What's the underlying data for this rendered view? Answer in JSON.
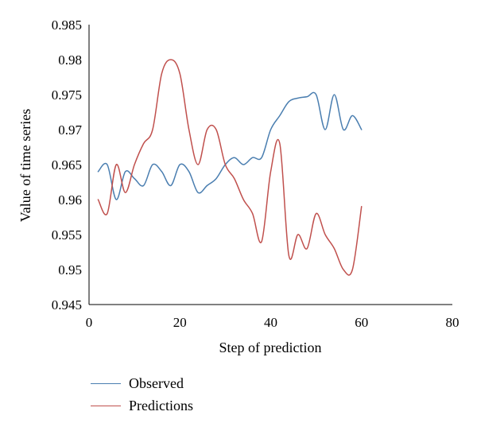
{
  "chart_data": {
    "type": "line",
    "title": "",
    "xlabel": "Step of prediction",
    "ylabel": "Value of time series",
    "xlim": [
      0,
      80
    ],
    "ylim": [
      0.945,
      0.985
    ],
    "x_ticks": [
      "0",
      "20",
      "40",
      "60",
      "80"
    ],
    "y_ticks": [
      "0.945",
      "0.95",
      "0.955",
      "0.96",
      "0.965",
      "0.97",
      "0.975",
      "0.98",
      "0.985"
    ],
    "grid": false,
    "legend_position": "bottom-left",
    "series": [
      {
        "name": "Observed",
        "color": "#4a7eb0",
        "points": [
          [
            2,
            0.964
          ],
          [
            4,
            0.965
          ],
          [
            6,
            0.96
          ],
          [
            8,
            0.964
          ],
          [
            10,
            0.963
          ],
          [
            12,
            0.962
          ],
          [
            14,
            0.965
          ],
          [
            16,
            0.964
          ],
          [
            18,
            0.962
          ],
          [
            20,
            0.965
          ],
          [
            22,
            0.964
          ],
          [
            24,
            0.961
          ],
          [
            26,
            0.962
          ],
          [
            28,
            0.963
          ],
          [
            30,
            0.965
          ],
          [
            32,
            0.966
          ],
          [
            34,
            0.965
          ],
          [
            36,
            0.966
          ],
          [
            38,
            0.966
          ],
          [
            40,
            0.97
          ],
          [
            42,
            0.972
          ],
          [
            44,
            0.974
          ],
          [
            46,
            0.9745
          ],
          [
            48,
            0.9747
          ],
          [
            50,
            0.975
          ],
          [
            52,
            0.97
          ],
          [
            54,
            0.975
          ],
          [
            56,
            0.97
          ],
          [
            58,
            0.972
          ],
          [
            60,
            0.97
          ]
        ]
      },
      {
        "name": "Predictions",
        "color": "#c0504d",
        "points": [
          [
            2,
            0.96
          ],
          [
            4,
            0.958
          ],
          [
            6,
            0.965
          ],
          [
            8,
            0.961
          ],
          [
            10,
            0.965
          ],
          [
            12,
            0.968
          ],
          [
            14,
            0.97
          ],
          [
            16,
            0.978
          ],
          [
            18,
            0.98
          ],
          [
            20,
            0.978
          ],
          [
            22,
            0.97
          ],
          [
            24,
            0.965
          ],
          [
            26,
            0.97
          ],
          [
            28,
            0.97
          ],
          [
            30,
            0.965
          ],
          [
            32,
            0.963
          ],
          [
            34,
            0.96
          ],
          [
            36,
            0.958
          ],
          [
            38,
            0.954
          ],
          [
            40,
            0.964
          ],
          [
            42,
            0.968
          ],
          [
            44,
            0.952
          ],
          [
            46,
            0.955
          ],
          [
            48,
            0.953
          ],
          [
            50,
            0.958
          ],
          [
            52,
            0.955
          ],
          [
            54,
            0.953
          ],
          [
            56,
            0.95
          ],
          [
            58,
            0.95
          ],
          [
            60,
            0.959
          ]
        ]
      }
    ]
  }
}
